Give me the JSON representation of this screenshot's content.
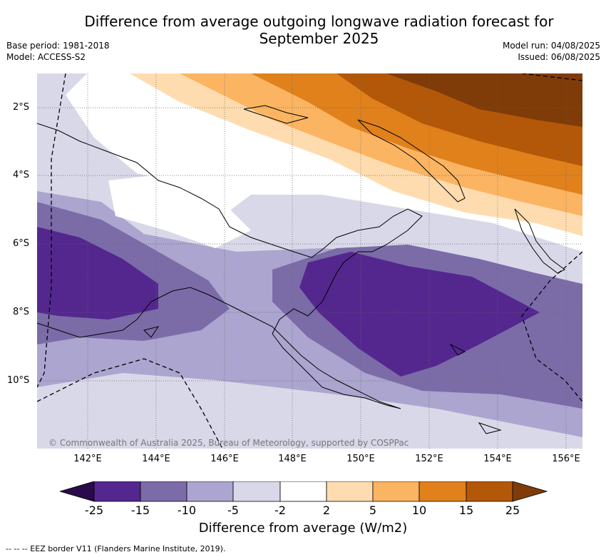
{
  "title": {
    "line1": "Difference from average outgoing longwave radiation forecast for",
    "line2": "September 2025"
  },
  "meta_left": {
    "base_period": "Base period: 1981-2018",
    "model": "Model: ACCESS-S2"
  },
  "meta_right": {
    "model_run": "Model run: 04/08/2025",
    "issued": "Issued: 06/08/2025"
  },
  "map": {
    "region": "Papua New Guinea and surrounding seas",
    "lat_labels": [
      "2°S",
      "4°S",
      "6°S",
      "8°S",
      "10°S"
    ],
    "lon_labels": [
      "142°E",
      "144°E",
      "146°E",
      "148°E",
      "150°E",
      "152°E",
      "154°E",
      "156°E"
    ],
    "copyright": "© Commonwealth of Australia 2025, Bureau of Meteorology, supported by COSPPac"
  },
  "legend": {
    "title": "Difference from average (W/m2)",
    "tick_labels": [
      "-25",
      "-15",
      "-10",
      "-5",
      "-2",
      "2",
      "5",
      "10",
      "15",
      "25"
    ],
    "colors": [
      "#2a0a4a",
      "#54278f",
      "#7b6ca8",
      "#aba5cf",
      "#d8d8e9",
      "#ffffff",
      "#fedcb0",
      "#fbb462",
      "#e0811c",
      "#b35808",
      "#7f3b08"
    ]
  },
  "footer": "--  --  -- EEZ border V11 (Flanders Marine Institute, 2019)."
}
